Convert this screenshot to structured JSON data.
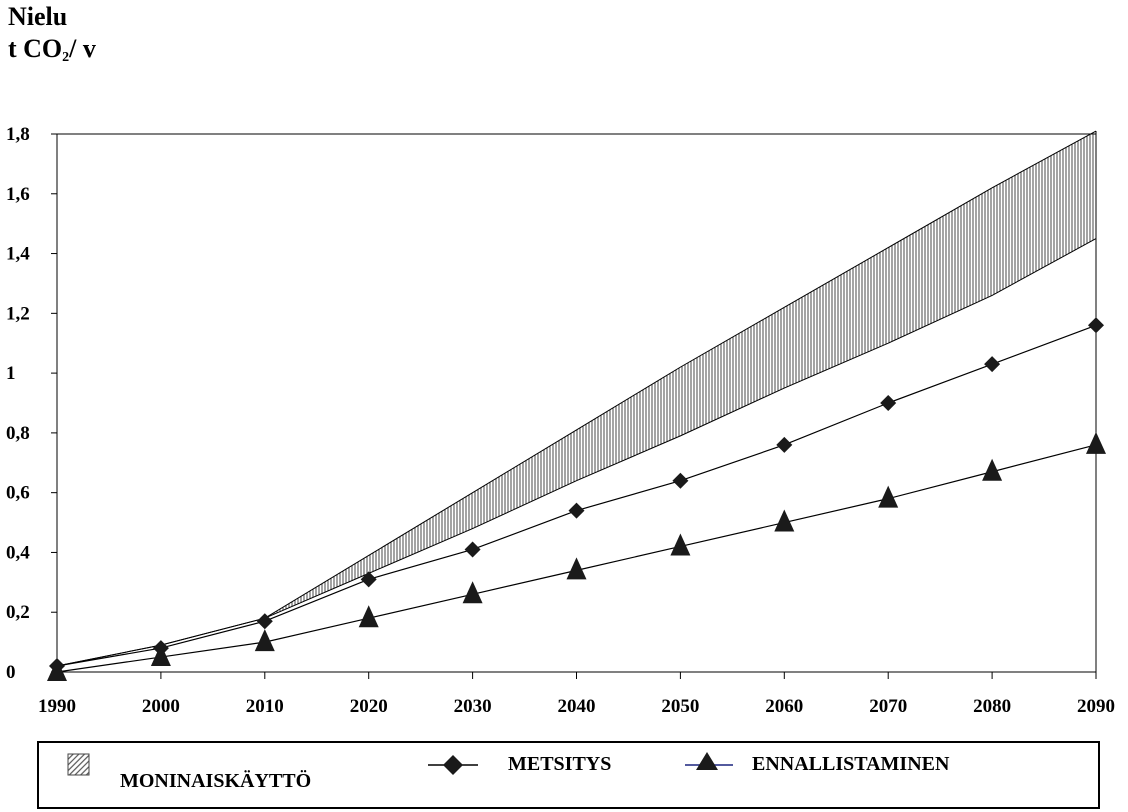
{
  "chart_data": {
    "type": "line",
    "ylabel_line1": "Nielu",
    "ylabel_unit_pre": "t CO",
    "ylabel_unit_sub": "2",
    "ylabel_unit_post": "/  v",
    "ytick_labels": [
      "0",
      "0,2",
      "0,4",
      "0,6",
      "0,8",
      "1",
      "1,2",
      "1,4",
      "1,6",
      "1,8"
    ],
    "ylim": [
      0,
      1.8
    ],
    "x": [
      1990,
      2000,
      2010,
      2020,
      2030,
      2040,
      2050,
      2060,
      2070,
      2080,
      2090
    ],
    "xlim": [
      1990,
      2090
    ],
    "grid": false,
    "legend_position": "bottom",
    "series": [
      {
        "name": "MONINAISKÄYTTÖ",
        "kind": "band",
        "upper": [
          0.02,
          0.09,
          0.18,
          0.39,
          0.6,
          0.81,
          1.02,
          1.22,
          1.42,
          1.62,
          1.81
        ],
        "lower": [
          0.02,
          0.09,
          0.18,
          0.33,
          0.48,
          0.64,
          0.79,
          0.95,
          1.1,
          1.26,
          1.45
        ]
      },
      {
        "name": "METSITYS",
        "kind": "line",
        "marker": "diamond",
        "values": [
          0.02,
          0.08,
          0.17,
          0.31,
          0.41,
          0.54,
          0.64,
          0.76,
          0.9,
          1.03,
          1.16
        ]
      },
      {
        "name": "ENNALLISTAMINEN",
        "kind": "line",
        "marker": "triangle",
        "values": [
          0.0,
          0.05,
          0.1,
          0.18,
          0.26,
          0.34,
          0.42,
          0.5,
          0.58,
          0.67,
          0.76
        ]
      }
    ],
    "colors": {
      "line": "#000000",
      "marker": "#1a1a1a",
      "legend_line_accent": "#1a237e"
    }
  }
}
